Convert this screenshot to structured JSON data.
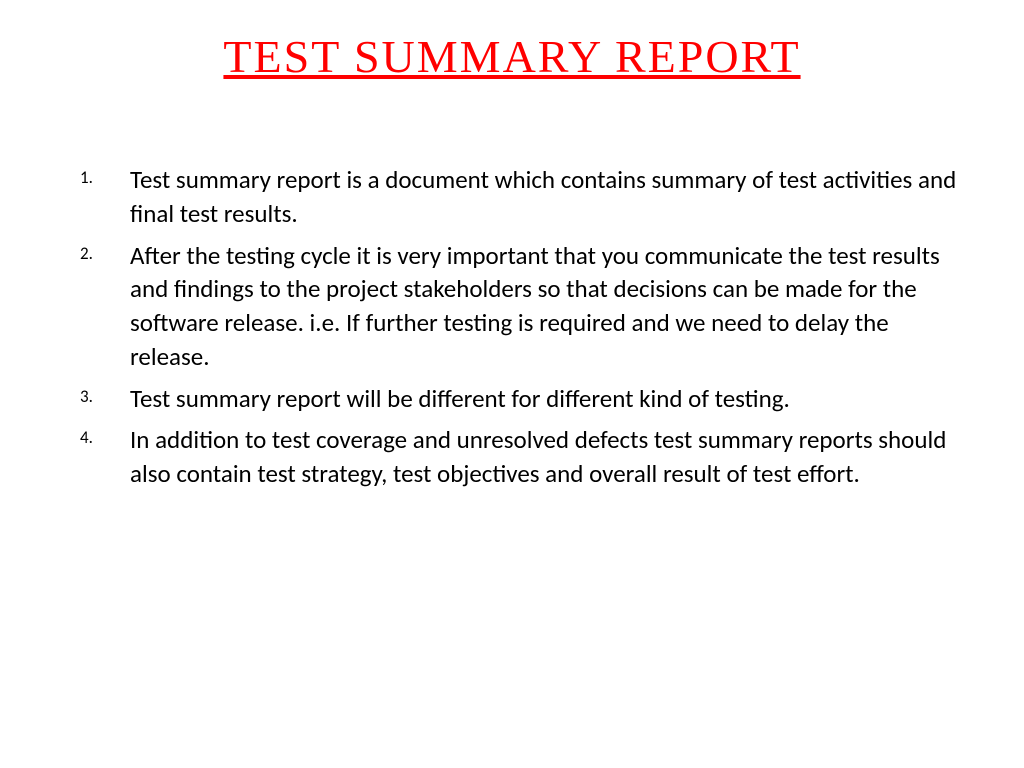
{
  "slide": {
    "title": "Test summary report",
    "title_color": "#ff0000",
    "title_fontsize": 46,
    "background_color": "#ffffff",
    "body_color": "#000000",
    "body_fontsize": 25,
    "marker_fontsize": 17,
    "items": [
      "Test summary report is a document which contains summary of test activities and final test results.",
      "After the testing cycle it is very important that you communicate the test results and findings to the project stakeholders so that decisions can be made for the software release. i.e. If further testing is required and we need to delay the release.",
      "Test summary report will be different for different kind of testing.",
      "In addition to test coverage and unresolved defects test summary reports should also contain test strategy, test objectives and overall result of test effort."
    ]
  }
}
